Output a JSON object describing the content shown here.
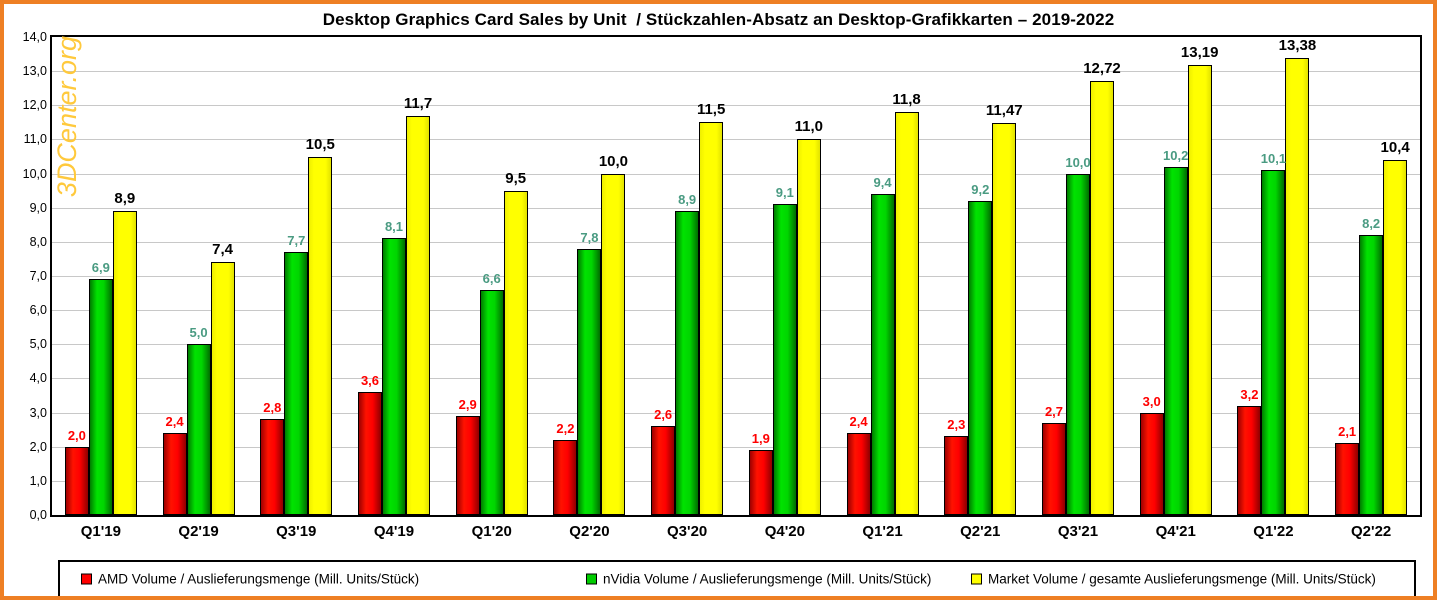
{
  "title": "Desktop Graphics Card Sales by Unit  / Stückzahlen-Absatz an Desktop-Grafikkarten – 2019-2022",
  "watermark": "3DCenter.org",
  "colors": {
    "frame_orange": "#EE7F24",
    "gridline": "#C8C8C8",
    "watermark_gold": "#FFC93C",
    "amd_red": "#FF0000",
    "nvidia_green": "#00CC00",
    "market_yellow": "#FFFF00",
    "amd_label": "#FF0000",
    "nvidia_label": "#4A9B82",
    "market_label": "#000000"
  },
  "y_axis": {
    "ticks": [
      "14,0",
      "13,0",
      "12,0",
      "11,0",
      "10,0",
      "9,0",
      "8,0",
      "7,0",
      "6,0",
      "5,0",
      "4,0",
      "3,0",
      "2,0",
      "1,0",
      "0,0"
    ],
    "max": 14,
    "min": 0
  },
  "chart_data": {
    "type": "bar",
    "title": "Desktop Graphics Card Sales by Unit / Stückzahlen-Absatz an Desktop-Grafikkarten – 2019-2022",
    "xlabel": "",
    "ylabel": "",
    "ylim": [
      0,
      14
    ],
    "grid": true,
    "legend_position": "bottom",
    "categories": [
      "Q1'19",
      "Q2'19",
      "Q3'19",
      "Q4'19",
      "Q1'20",
      "Q2'20",
      "Q3'20",
      "Q4'20",
      "Q1'21",
      "Q2'21",
      "Q3'21",
      "Q4'21",
      "Q1'22",
      "Q2'22"
    ],
    "series": [
      {
        "name": "AMD Volume / Auslieferungsmenge (Mill. Units/Stück)",
        "color": "#FF0000",
        "label_color": "#FF0000",
        "values": [
          2.0,
          2.4,
          2.8,
          3.6,
          2.9,
          2.2,
          2.6,
          1.9,
          2.4,
          2.3,
          2.7,
          3.0,
          3.2,
          2.1
        ],
        "labels": [
          "2,0",
          "2,4",
          "2,8",
          "3,6",
          "2,9",
          "2,2",
          "2,6",
          "1,9",
          "2,4",
          "2,3",
          "2,7",
          "3,0",
          "3,2",
          "2,1"
        ]
      },
      {
        "name": "nVidia Volume / Auslieferungsmenge (Mill. Units/Stück)",
        "color": "#00CC00",
        "label_color": "#4A9B82",
        "values": [
          6.9,
          5.0,
          7.7,
          8.1,
          6.6,
          7.8,
          8.9,
          9.1,
          9.4,
          9.2,
          10.0,
          10.2,
          10.1,
          8.2
        ],
        "labels": [
          "6,9",
          "5,0",
          "7,7",
          "8,1",
          "6,6",
          "7,8",
          "8,9",
          "9,1",
          "9,4",
          "9,2",
          "10,0",
          "10,2",
          "10,1",
          "8,2"
        ]
      },
      {
        "name": "Market Volume / gesamte Auslieferungsmenge (Mill. Units/Stück)",
        "color": "#FFFF00",
        "label_color": "#000000",
        "values": [
          8.9,
          7.4,
          10.5,
          11.7,
          9.5,
          10.0,
          11.5,
          11.0,
          11.8,
          11.47,
          12.72,
          13.19,
          13.38,
          10.4
        ],
        "labels": [
          "8,9",
          "7,4",
          "10,5",
          "11,7",
          "9,5",
          "10,0",
          "11,5",
          "11,0",
          "11,8",
          "11,47",
          "12,72",
          "13,19",
          "13,38",
          "10,4"
        ]
      }
    ]
  }
}
